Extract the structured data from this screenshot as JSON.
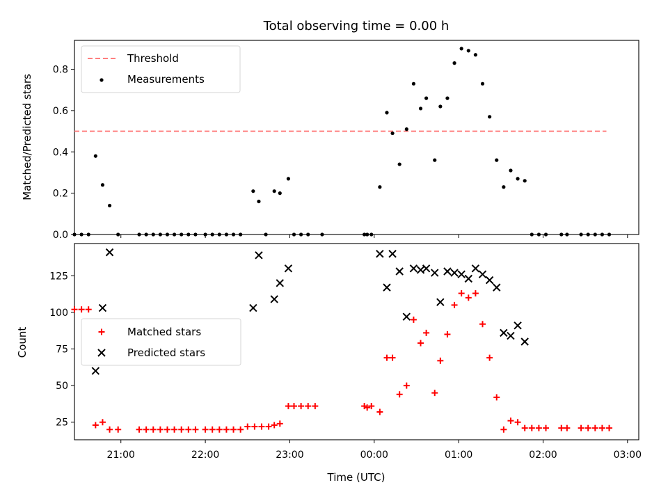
{
  "chart_data": [
    {
      "type": "scatter",
      "title": "Total observing time = 0.00 h",
      "xlabel": "",
      "ylabel": "Matched/Predicted stars",
      "xlim": [
        "20:27",
        "03:08"
      ],
      "ylim": [
        0,
        0.94
      ],
      "yticks": [
        0.0,
        0.2,
        0.4,
        0.6,
        0.8
      ],
      "ytick_labels": [
        "0.0",
        "0.2",
        "0.4",
        "0.6",
        "0.8"
      ],
      "grid": false,
      "legend_position": "top-left",
      "threshold": {
        "name": "Threshold",
        "y": 0.5,
        "x": [
          "20:27",
          "02:45"
        ],
        "color": "#ff7f7f",
        "style": "dashed"
      },
      "series": [
        {
          "name": "Measurements",
          "marker": "dot",
          "color": "#000000",
          "points": [
            [
              "20:27",
              0
            ],
            [
              "20:32",
              0
            ],
            [
              "20:37",
              0
            ],
            [
              "20:42",
              0.38
            ],
            [
              "20:47",
              0.24
            ],
            [
              "20:52",
              0.14
            ],
            [
              "20:58",
              0
            ],
            [
              "21:13",
              0
            ],
            [
              "21:18",
              0
            ],
            [
              "21:23",
              0
            ],
            [
              "21:28",
              0
            ],
            [
              "21:33",
              0
            ],
            [
              "21:38",
              0
            ],
            [
              "21:43",
              0
            ],
            [
              "21:48",
              0
            ],
            [
              "21:53",
              0
            ],
            [
              "22:00",
              0
            ],
            [
              "22:05",
              0
            ],
            [
              "22:10",
              0
            ],
            [
              "22:15",
              0
            ],
            [
              "22:20",
              0
            ],
            [
              "22:25",
              0
            ],
            [
              "22:34",
              0.21
            ],
            [
              "22:38",
              0.16
            ],
            [
              "22:43",
              0
            ],
            [
              "22:49",
              0.21
            ],
            [
              "22:53",
              0.2
            ],
            [
              "22:59",
              0.27
            ],
            [
              "23:03",
              0
            ],
            [
              "23:08",
              0
            ],
            [
              "23:13",
              0
            ],
            [
              "23:23",
              0
            ],
            [
              "23:53",
              0
            ],
            [
              "23:55",
              0
            ],
            [
              "23:58",
              0
            ],
            [
              "00:04",
              0.23
            ],
            [
              "00:09",
              0.59
            ],
            [
              "00:13",
              0.49
            ],
            [
              "00:18",
              0.34
            ],
            [
              "00:23",
              0.51
            ],
            [
              "00:28",
              0.73
            ],
            [
              "00:33",
              0.61
            ],
            [
              "00:37",
              0.66
            ],
            [
              "00:43",
              0.36
            ],
            [
              "00:47",
              0.62
            ],
            [
              "00:52",
              0.66
            ],
            [
              "00:57",
              0.83
            ],
            [
              "01:02",
              0.9
            ],
            [
              "01:07",
              0.89
            ],
            [
              "01:12",
              0.87
            ],
            [
              "01:17",
              0.73
            ],
            [
              "01:22",
              0.57
            ],
            [
              "01:27",
              0.36
            ],
            [
              "01:32",
              0.23
            ],
            [
              "01:37",
              0.31
            ],
            [
              "01:42",
              0.27
            ],
            [
              "01:47",
              0.26
            ],
            [
              "01:52",
              0
            ],
            [
              "01:57",
              0
            ],
            [
              "02:02",
              0
            ],
            [
              "02:13",
              0
            ],
            [
              "02:17",
              0
            ],
            [
              "02:27",
              0
            ],
            [
              "02:32",
              0
            ],
            [
              "02:37",
              0
            ],
            [
              "02:42",
              0
            ],
            [
              "02:47",
              0
            ]
          ]
        }
      ]
    },
    {
      "type": "scatter",
      "title": "",
      "xlabel": "Time (UTC)",
      "ylabel": "Count",
      "xlim": [
        "20:27",
        "03:08"
      ],
      "xticks": [
        "21:00",
        "22:00",
        "23:00",
        "00:00",
        "01:00",
        "02:00",
        "03:00"
      ],
      "ylim": [
        13,
        147
      ],
      "yticks": [
        25,
        50,
        75,
        100,
        125
      ],
      "ytick_labels": [
        "25",
        "50",
        "75",
        "100",
        "125"
      ],
      "grid": false,
      "legend_position": "center-left",
      "series": [
        {
          "name": "Matched stars",
          "marker": "plus",
          "color": "#ff0000",
          "points": [
            [
              "20:27",
              102
            ],
            [
              "20:32",
              102
            ],
            [
              "20:37",
              102
            ],
            [
              "20:42",
              23
            ],
            [
              "20:47",
              25
            ],
            [
              "20:52",
              20
            ],
            [
              "20:58",
              20
            ],
            [
              "21:13",
              20
            ],
            [
              "21:18",
              20
            ],
            [
              "21:23",
              20
            ],
            [
              "21:28",
              20
            ],
            [
              "21:33",
              20
            ],
            [
              "21:38",
              20
            ],
            [
              "21:43",
              20
            ],
            [
              "21:48",
              20
            ],
            [
              "21:53",
              20
            ],
            [
              "22:00",
              20
            ],
            [
              "22:05",
              20
            ],
            [
              "22:10",
              20
            ],
            [
              "22:15",
              20
            ],
            [
              "22:20",
              20
            ],
            [
              "22:25",
              20
            ],
            [
              "22:30",
              22
            ],
            [
              "22:35",
              22
            ],
            [
              "22:40",
              22
            ],
            [
              "22:45",
              22
            ],
            [
              "22:49",
              23
            ],
            [
              "22:53",
              24
            ],
            [
              "22:59",
              36
            ],
            [
              "23:03",
              36
            ],
            [
              "23:08",
              36
            ],
            [
              "23:13",
              36
            ],
            [
              "23:18",
              36
            ],
            [
              "23:53",
              36
            ],
            [
              "23:55",
              35
            ],
            [
              "23:58",
              36
            ],
            [
              "00:04",
              32
            ],
            [
              "00:09",
              69
            ],
            [
              "00:13",
              69
            ],
            [
              "00:18",
              44
            ],
            [
              "00:23",
              50
            ],
            [
              "00:28",
              95
            ],
            [
              "00:33",
              79
            ],
            [
              "00:37",
              86
            ],
            [
              "00:43",
              45
            ],
            [
              "00:47",
              67
            ],
            [
              "00:52",
              85
            ],
            [
              "00:57",
              105
            ],
            [
              "01:02",
              113
            ],
            [
              "01:07",
              110
            ],
            [
              "01:12",
              113
            ],
            [
              "01:17",
              92
            ],
            [
              "01:22",
              69
            ],
            [
              "01:27",
              42
            ],
            [
              "01:32",
              20
            ],
            [
              "01:37",
              26
            ],
            [
              "01:42",
              25
            ],
            [
              "01:47",
              21
            ],
            [
              "01:52",
              21
            ],
            [
              "01:57",
              21
            ],
            [
              "02:02",
              21
            ],
            [
              "02:13",
              21
            ],
            [
              "02:17",
              21
            ],
            [
              "02:27",
              21
            ],
            [
              "02:32",
              21
            ],
            [
              "02:37",
              21
            ],
            [
              "02:42",
              21
            ],
            [
              "02:47",
              21
            ]
          ]
        },
        {
          "name": "Predicted stars",
          "marker": "x",
          "color": "#000000",
          "points": [
            [
              "20:42",
              60
            ],
            [
              "20:47",
              103
            ],
            [
              "20:52",
              141
            ],
            [
              "22:34",
              103
            ],
            [
              "22:38",
              139
            ],
            [
              "22:49",
              109
            ],
            [
              "22:53",
              120
            ],
            [
              "22:59",
              130
            ],
            [
              "00:04",
              140
            ],
            [
              "00:09",
              117
            ],
            [
              "00:13",
              140
            ],
            [
              "00:18",
              128
            ],
            [
              "00:23",
              97
            ],
            [
              "00:28",
              130
            ],
            [
              "00:33",
              129
            ],
            [
              "00:37",
              130
            ],
            [
              "00:43",
              127
            ],
            [
              "00:47",
              107
            ],
            [
              "00:52",
              128
            ],
            [
              "00:57",
              127
            ],
            [
              "01:02",
              126
            ],
            [
              "01:07",
              123
            ],
            [
              "01:12",
              130
            ],
            [
              "01:17",
              126
            ],
            [
              "01:22",
              122
            ],
            [
              "01:27",
              117
            ],
            [
              "01:32",
              86
            ],
            [
              "01:37",
              84
            ],
            [
              "01:42",
              91
            ],
            [
              "01:47",
              80
            ]
          ]
        }
      ]
    }
  ]
}
